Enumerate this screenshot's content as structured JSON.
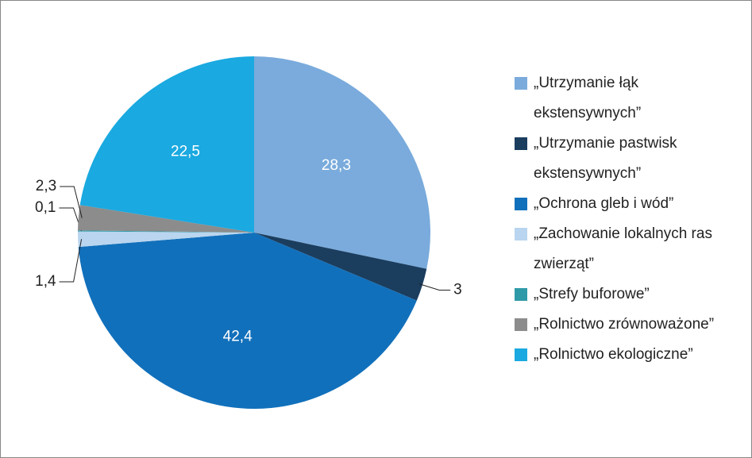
{
  "chart_data": {
    "type": "pie",
    "categories": [
      "„Utrzymanie łąk ekstensywnych”",
      "„Utrzymanie pastwisk ekstensywnych”",
      "„Ochrona gleb i wód”",
      "„Zachowanie lokalnych ras zwierząt”",
      "„Strefy buforowe”",
      "„Rolnictwo zrównoważone”",
      "„Rolnictwo ekologiczne”"
    ],
    "values": [
      28.3,
      3,
      42.4,
      1.4,
      0.1,
      2.3,
      22.5
    ],
    "value_labels": [
      "28,3",
      "3",
      "42,4",
      "1,4",
      "0,1",
      "2,3",
      "22,5"
    ],
    "colors": [
      "#7aabdc",
      "#1b3d5e",
      "#1170bb",
      "#b9d5ef",
      "#2e9aa8",
      "#8c8c8c",
      "#1aa9e0"
    ],
    "legend": "right"
  }
}
